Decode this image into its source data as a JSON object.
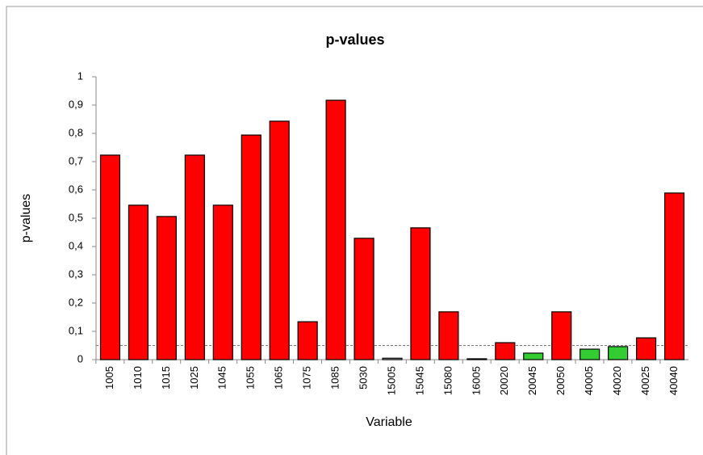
{
  "chart_data": {
    "type": "bar",
    "title": "p-values",
    "x_label": "Variable",
    "y_label": "p-values",
    "categories": [
      "1005",
      "1010",
      "1015",
      "1025",
      "1045",
      "1055",
      "1065",
      "1075",
      "1085",
      "5030",
      "15005",
      "15045",
      "15080",
      "16005",
      "20020",
      "20045",
      "20050",
      "40005",
      "40020",
      "40025",
      "40040"
    ],
    "values": [
      0.723,
      0.546,
      0.506,
      0.723,
      0.546,
      0.794,
      0.843,
      0.134,
      0.917,
      0.429,
      0.005,
      0.466,
      0.169,
      0.003,
      0.06,
      0.023,
      0.169,
      0.037,
      0.046,
      0.077,
      0.589
    ],
    "colors": [
      "#ff0000",
      "#ff0000",
      "#ff0000",
      "#ff0000",
      "#ff0000",
      "#ff0000",
      "#ff0000",
      "#ff0000",
      "#ff0000",
      "#ff0000",
      "#c0c0c0",
      "#ff0000",
      "#ff0000",
      "#c0c0c0",
      "#ff0000",
      "#33cc33",
      "#ff0000",
      "#33cc33",
      "#33cc33",
      "#ff0000",
      "#ff0000"
    ],
    "reference_line": 0.05,
    "ylim": [
      0,
      1
    ],
    "yticks": [
      0,
      {
        "value": 0.1,
        "label": "0,1"
      },
      {
        "value": 0.2,
        "label": "0,2"
      },
      {
        "value": 0.3,
        "label": "0,3"
      },
      {
        "value": 0.4,
        "label": "0,4"
      },
      {
        "value": 0.5,
        "label": "0,5"
      },
      {
        "value": 0.6,
        "label": "0,6"
      },
      {
        "value": 0.7,
        "label": "0,7"
      },
      {
        "value": 0.8,
        "label": "0,8"
      },
      {
        "value": 0.9,
        "label": "0,9"
      },
      1
    ]
  }
}
